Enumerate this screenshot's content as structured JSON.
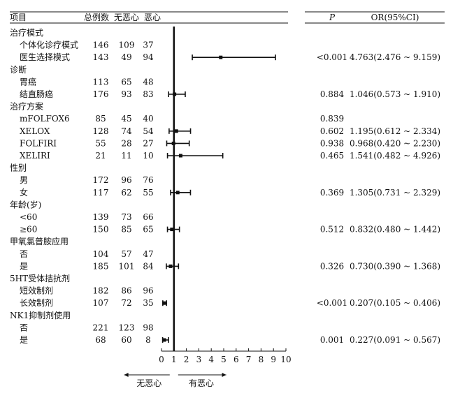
{
  "chart_data": {
    "type": "forest",
    "columns": {
      "item": "项目",
      "total": "总例数",
      "no_nausea": "无恶心",
      "nausea": "恶心",
      "p": "P",
      "or": "OR(95%CI)"
    },
    "rows": [
      {
        "label": "治疗模式",
        "group": true
      },
      {
        "label": "个体化诊疗模式",
        "total": "146",
        "no": "109",
        "yes": "37"
      },
      {
        "label": "医生选择模式",
        "total": "143",
        "no": "49",
        "yes": "94",
        "p": "<0.001",
        "or_text": "4.763(2.476 ~ 9.159)",
        "or": 4.763,
        "lo": 2.476,
        "hi": 9.159
      },
      {
        "label": "诊断",
        "group": true
      },
      {
        "label": "胃癌",
        "total": "113",
        "no": "65",
        "yes": "48"
      },
      {
        "label": "结直肠癌",
        "total": "176",
        "no": "93",
        "yes": "83",
        "p": "0.884",
        "or_text": "1.046(0.573 ~ 1.910)",
        "or": 1.046,
        "lo": 0.573,
        "hi": 1.91
      },
      {
        "label": "治疗方案",
        "group": true
      },
      {
        "label": "mFOLFOX6",
        "total": "85",
        "no": "45",
        "yes": "40",
        "p": "0.839"
      },
      {
        "label": "XELOX",
        "total": "128",
        "no": "74",
        "yes": "54",
        "p": "0.602",
        "or_text": "1.195(0.612 ~ 2.334)",
        "or": 1.195,
        "lo": 0.612,
        "hi": 2.334
      },
      {
        "label": "FOLFIRI",
        "total": "55",
        "no": "28",
        "yes": "27",
        "p": "0.938",
        "or_text": "0.968(0.420 ~ 2.230)",
        "or": 0.968,
        "lo": 0.42,
        "hi": 2.23
      },
      {
        "label": "XELIRI",
        "total": "21",
        "no": "11",
        "yes": "10",
        "p": "0.465",
        "or_text": "1.541(0.482 ~ 4.926)",
        "or": 1.541,
        "lo": 0.482,
        "hi": 4.926
      },
      {
        "label": "性别",
        "group": true
      },
      {
        "label": "男",
        "total": "172",
        "no": "96",
        "yes": "76"
      },
      {
        "label": "女",
        "total": "117",
        "no": "62",
        "yes": "55",
        "p": "0.369",
        "or_text": "1.305(0.731 ~ 2.329)",
        "or": 1.305,
        "lo": 0.731,
        "hi": 2.329
      },
      {
        "label": "年龄(岁)",
        "group": true
      },
      {
        "label": "<60",
        "total": "139",
        "no": "73",
        "yes": "66"
      },
      {
        "label": "≥60",
        "total": "150",
        "no": "85",
        "yes": "65",
        "p": "0.512",
        "or_text": "0.832(0.480 ~ 1.442)",
        "or": 0.832,
        "lo": 0.48,
        "hi": 1.442
      },
      {
        "label": "甲氧氯普胺应用",
        "group": true
      },
      {
        "label": "否",
        "total": "104",
        "no": "57",
        "yes": "47"
      },
      {
        "label": "是",
        "total": "185",
        "no": "101",
        "yes": "84",
        "p": "0.326",
        "or_text": "0.730(0.390 ~ 1.368)",
        "or": 0.73,
        "lo": 0.39,
        "hi": 1.368
      },
      {
        "label": "5HT受体拮抗剂",
        "group": true
      },
      {
        "label": "短效制剂",
        "total": "182",
        "no": "86",
        "yes": "96"
      },
      {
        "label": "长效制剂",
        "total": "107",
        "no": "72",
        "yes": "35",
        "p": "<0.001",
        "or_text": "0.207(0.105 ~ 0.406)",
        "or": 0.207,
        "lo": 0.105,
        "hi": 0.406
      },
      {
        "label": "NK1抑制剂使用",
        "group": true
      },
      {
        "label": "否",
        "total": "221",
        "no": "123",
        "yes": "98"
      },
      {
        "label": "是",
        "total": "68",
        "no": "60",
        "yes": "8",
        "p": "0.001",
        "or_text": "0.227(0.091 ~ 0.567)",
        "or": 0.227,
        "lo": 0.091,
        "hi": 0.567
      }
    ],
    "x_ticks": [
      0,
      1,
      2,
      3,
      4,
      5,
      6,
      7,
      8,
      9,
      10
    ],
    "xlim": [
      0,
      10
    ],
    "reference_line": 1,
    "direction_left": "无恶心",
    "direction_right": "有恶心",
    "colors": {
      "ink": "#111111"
    }
  }
}
